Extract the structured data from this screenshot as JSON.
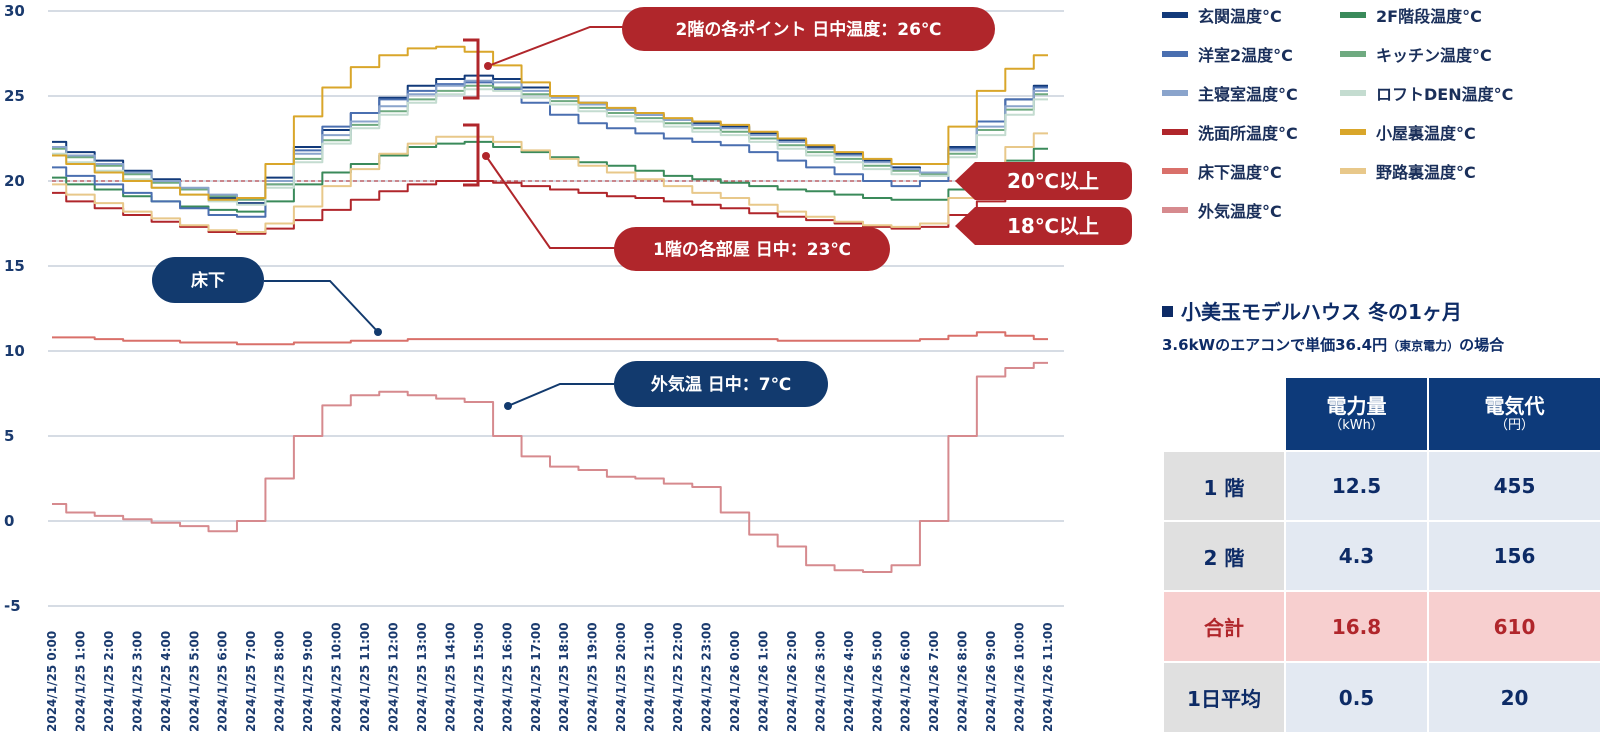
{
  "chart_data": {
    "type": "line",
    "y_ticks": [
      30,
      25,
      20,
      15,
      10,
      5,
      0,
      -5
    ],
    "ylim": [
      -5,
      30
    ],
    "x": [
      "2024/1/25  0:00",
      "2024/1/25  1:00",
      "2024/1/25  2:00",
      "2024/1/25  3:00",
      "2024/1/25  4:00",
      "2024/1/25  5:00",
      "2024/1/25  6:00",
      "2024/1/25  7:00",
      "2024/1/25  8:00",
      "2024/1/25  9:00",
      "2024/1/25 10:00",
      "2024/1/25 11:00",
      "2024/1/25 12:00",
      "2024/1/25 13:00",
      "2024/1/25 14:00",
      "2024/1/25 15:00",
      "2024/1/25 16:00",
      "2024/1/25 17:00",
      "2024/1/25 18:00",
      "2024/1/25 19:00",
      "2024/1/25 20:00",
      "2024/1/25 21:00",
      "2024/1/25 22:00",
      "2024/1/25 23:00",
      "2024/1/26  0:00",
      "2024/1/26  1:00",
      "2024/1/26  2:00",
      "2024/1/26  3:00",
      "2024/1/26  4:00",
      "2024/1/26  5:00",
      "2024/1/26  6:00",
      "2024/1/26  7:00",
      "2024/1/26  8:00",
      "2024/1/26  9:00",
      "2024/1/26 10:00",
      "2024/1/26 11:00"
    ],
    "threshold_line": 20,
    "series": [
      {
        "name": "玄関温度°C",
        "color": "#123a7a",
        "values": [
          22.3,
          21.7,
          21.2,
          20.6,
          20.1,
          19.5,
          19.0,
          18.7,
          20.2,
          22.0,
          23.0,
          24.0,
          24.9,
          25.6,
          26.0,
          26.2,
          26.0,
          25.5,
          25.0,
          24.6,
          24.2,
          23.9,
          23.6,
          23.4,
          23.2,
          22.8,
          22.4,
          22.0,
          21.6,
          21.2,
          20.8,
          20.5,
          22.0,
          23.5,
          24.8,
          25.6
        ]
      },
      {
        "name": "2F階段温度°C",
        "color": "#3a8a5a",
        "values": [
          20.2,
          19.8,
          19.5,
          19.1,
          18.8,
          18.5,
          18.3,
          18.2,
          18.8,
          19.8,
          20.5,
          21.0,
          21.5,
          22.0,
          22.2,
          22.3,
          22.0,
          21.7,
          21.4,
          21.1,
          20.9,
          20.6,
          20.3,
          20.1,
          19.9,
          19.7,
          19.5,
          19.4,
          19.2,
          19.0,
          18.9,
          18.9,
          19.5,
          20.3,
          21.2,
          21.9
        ]
      },
      {
        "name": "洋室2温度°C",
        "color": "#4a6fb0",
        "values": [
          20.8,
          20.3,
          19.8,
          19.3,
          18.8,
          18.4,
          18.0,
          17.9,
          19.8,
          21.8,
          23.2,
          24.0,
          24.8,
          25.3,
          25.7,
          25.8,
          25.4,
          24.6,
          23.9,
          23.4,
          23.1,
          22.8,
          22.5,
          22.3,
          22.1,
          21.7,
          21.2,
          20.8,
          20.4,
          20.0,
          19.7,
          20.0,
          21.9,
          23.5,
          24.8,
          25.5
        ]
      },
      {
        "name": "キッチン温度°C",
        "color": "#6faa80",
        "values": [
          21.9,
          21.4,
          20.9,
          20.4,
          19.9,
          19.5,
          19.1,
          18.9,
          19.8,
          21.3,
          22.4,
          23.3,
          24.1,
          24.8,
          25.3,
          25.6,
          25.5,
          25.1,
          24.7,
          24.3,
          24.0,
          23.7,
          23.4,
          23.1,
          22.9,
          22.5,
          22.1,
          21.7,
          21.3,
          20.9,
          20.6,
          20.4,
          21.6,
          23.0,
          24.2,
          25.1
        ]
      },
      {
        "name": "主寝室温度°C",
        "color": "#8aa4cc",
        "values": [
          22.0,
          21.5,
          21.0,
          20.5,
          20.0,
          19.6,
          19.2,
          19.0,
          20.0,
          21.6,
          22.7,
          23.5,
          24.4,
          25.1,
          25.6,
          25.9,
          25.8,
          25.3,
          24.9,
          24.5,
          24.2,
          23.9,
          23.6,
          23.3,
          23.1,
          22.7,
          22.3,
          21.9,
          21.5,
          21.1,
          20.7,
          20.5,
          21.8,
          23.2,
          24.4,
          25.3
        ]
      },
      {
        "name": "ロフトDEN温度°C",
        "color": "#c4dcd0",
        "values": [
          21.6,
          21.1,
          20.6,
          20.1,
          19.6,
          19.2,
          18.8,
          18.6,
          19.6,
          21.1,
          22.2,
          23.1,
          23.9,
          24.6,
          25.1,
          25.4,
          25.3,
          24.9,
          24.5,
          24.1,
          23.8,
          23.5,
          23.2,
          22.9,
          22.7,
          22.3,
          21.9,
          21.5,
          21.1,
          20.7,
          20.4,
          20.3,
          21.4,
          22.7,
          23.9,
          24.8
        ]
      },
      {
        "name": "洗面所温度°C",
        "color": "#b0262b",
        "values": [
          19.3,
          18.8,
          18.4,
          18.0,
          17.6,
          17.3,
          17.0,
          16.9,
          17.2,
          17.7,
          18.3,
          18.9,
          19.4,
          19.8,
          20.0,
          20.0,
          19.9,
          19.7,
          19.5,
          19.3,
          19.1,
          19.0,
          18.8,
          18.6,
          18.4,
          18.1,
          17.9,
          17.7,
          17.5,
          17.3,
          17.2,
          17.3,
          18.0,
          18.8,
          19.6,
          20.2
        ]
      },
      {
        "name": "小屋裏温度°C",
        "color": "#d9a62a",
        "values": [
          21.5,
          21.0,
          20.5,
          20.0,
          19.6,
          19.2,
          18.9,
          19.0,
          21.0,
          23.8,
          25.5,
          26.7,
          27.4,
          27.8,
          27.9,
          27.6,
          26.8,
          25.8,
          25.0,
          24.6,
          24.3,
          24.0,
          23.7,
          23.5,
          23.3,
          22.9,
          22.5,
          22.1,
          21.7,
          21.3,
          21.0,
          21.0,
          23.2,
          25.3,
          26.6,
          27.4
        ]
      },
      {
        "name": "床下温度°C",
        "color": "#d9706a",
        "values": [
          10.8,
          10.8,
          10.7,
          10.6,
          10.6,
          10.5,
          10.5,
          10.4,
          10.4,
          10.5,
          10.5,
          10.6,
          10.6,
          10.7,
          10.7,
          10.7,
          10.7,
          10.7,
          10.7,
          10.7,
          10.7,
          10.7,
          10.7,
          10.7,
          10.7,
          10.7,
          10.6,
          10.6,
          10.6,
          10.6,
          10.6,
          10.7,
          10.9,
          11.1,
          10.9,
          10.7
        ]
      },
      {
        "name": "野路裏温度°C",
        "color": "#e8c88a",
        "values": [
          19.8,
          19.2,
          18.7,
          18.2,
          17.8,
          17.4,
          17.1,
          17.0,
          17.5,
          18.5,
          19.7,
          20.7,
          21.6,
          22.2,
          22.6,
          22.6,
          22.3,
          21.8,
          21.3,
          20.9,
          20.5,
          20.1,
          19.7,
          19.3,
          19.0,
          18.6,
          18.2,
          17.9,
          17.6,
          17.4,
          17.3,
          17.5,
          19.0,
          20.7,
          22.0,
          22.8
        ]
      },
      {
        "name": "外気温度°C",
        "color": "#d68a8e",
        "values": [
          1.0,
          0.5,
          0.3,
          0.1,
          -0.1,
          -0.3,
          -0.6,
          0.0,
          2.5,
          5.0,
          6.8,
          7.4,
          7.6,
          7.4,
          7.2,
          7.0,
          5.0,
          3.8,
          3.2,
          3.0,
          2.6,
          2.5,
          2.2,
          2.0,
          0.5,
          -0.8,
          -1.5,
          -2.6,
          -2.9,
          -3.0,
          -2.6,
          0.0,
          5.0,
          8.5,
          9.0,
          9.3
        ]
      }
    ],
    "annotations": [
      {
        "text": "2階の各ポイント  日中温度：26℃",
        "kind": "red"
      },
      {
        "text": "1階の各部屋  日中：23℃",
        "kind": "red"
      },
      {
        "text": "20℃以上",
        "kind": "red-tag"
      },
      {
        "text": "18℃以上",
        "kind": "red-tag"
      },
      {
        "text": "床下",
        "kind": "navy"
      },
      {
        "text": "外気温  日中：7℃",
        "kind": "navy"
      }
    ]
  },
  "legend_order": [
    "玄関温度°C",
    "2F階段温度°C",
    "洋室2温度°C",
    "キッチン温度°C",
    "主寝室温度°C",
    "ロフトDEN温度°C",
    "洗面所温度°C",
    "小屋裏温度°C",
    "床下温度°C",
    "野路裏温度°C",
    "外気温度°C"
  ],
  "summary": {
    "title": "小美玉モデルハウス 冬の1ヶ月",
    "subtitle_main": "3.6kWのエアコンで単価36.4円",
    "subtitle_small": "（東京電力）",
    "subtitle_end": "の場合",
    "table": {
      "col1": "電力量",
      "col1_unit": "（kWh）",
      "col2": "電気代",
      "col2_unit": "（円）",
      "rows": [
        {
          "label": "1 階",
          "kwh": "12.5",
          "yen": "455"
        },
        {
          "label": "2 階",
          "kwh": "4.3",
          "yen": "156"
        },
        {
          "label": "合計",
          "kwh": "16.8",
          "yen": "610"
        },
        {
          "label": "1日平均",
          "kwh": "0.5",
          "yen": "20"
        }
      ]
    }
  },
  "colors": {
    "navy": "#123a6e",
    "red": "#b0262b",
    "grid": "#c9d0dc"
  }
}
